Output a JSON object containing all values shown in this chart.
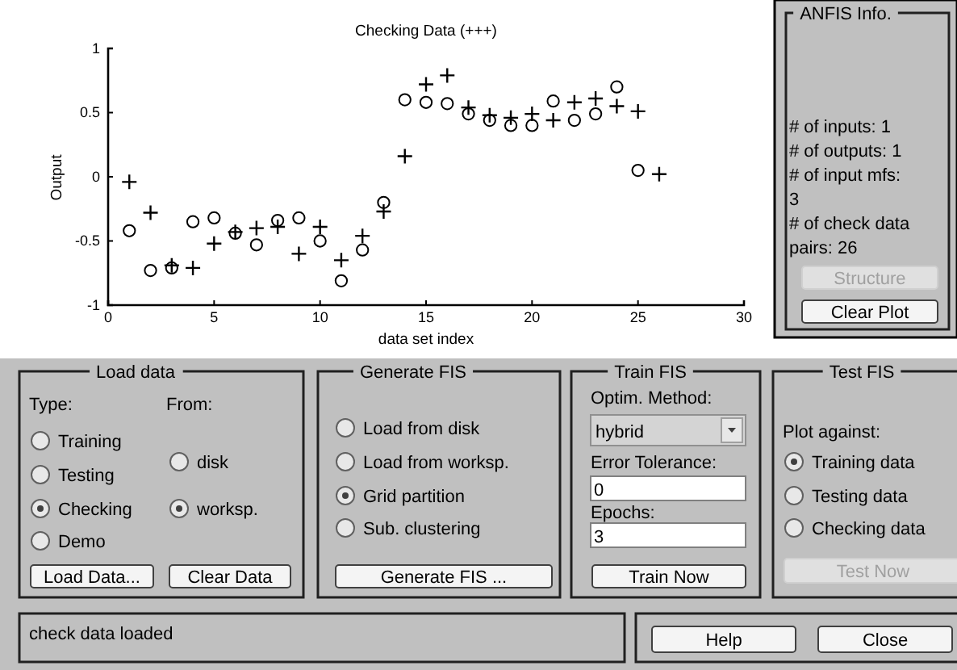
{
  "chart_data": [
    {
      "type": "scatter",
      "title": "Checking Data (+++)",
      "xlabel": "data set index",
      "ylabel": "Output",
      "x": [
        1,
        2,
        3,
        4,
        5,
        6,
        7,
        8,
        9,
        10,
        11,
        12,
        13,
        14,
        15,
        16,
        17,
        18,
        19,
        20,
        21,
        22,
        23,
        24,
        25,
        26
      ],
      "xlim": [
        0,
        30
      ],
      "xticks": [
        0,
        5,
        10,
        15,
        20,
        25,
        30
      ],
      "ylim": [
        -1,
        1
      ],
      "yticks": [
        -1,
        -0.5,
        0,
        0.5,
        1
      ],
      "series": [
        {
          "color": "#000000",
          "marker": "circle",
          "values": [
            -0.42,
            -0.73,
            -0.71,
            -0.35,
            -0.32,
            -0.44,
            -0.53,
            -0.34,
            -0.32,
            -0.5,
            -0.81,
            -0.57,
            -0.2,
            0.6,
            0.58,
            0.57,
            0.49,
            0.44,
            0.4,
            0.4,
            0.59,
            0.44,
            0.49,
            0.7,
            0.05,
            null
          ]
        },
        {
          "color": "#000000",
          "marker": "cross",
          "values": [
            -0.04,
            -0.28,
            -0.69,
            -0.71,
            -0.52,
            -0.43,
            -0.4,
            -0.39,
            -0.6,
            -0.39,
            -0.65,
            -0.46,
            -0.27,
            0.16,
            0.72,
            0.79,
            0.54,
            0.48,
            0.46,
            0.49,
            0.44,
            0.58,
            0.61,
            0.55,
            0.51,
            0.02
          ]
        }
      ]
    },
    {
      "type": "other",
      "title": "ANFIS Info.",
      "annotations": [
        "# of inputs: 1",
        "# of outputs: 1",
        "# of input mfs:",
        "3",
        "# of check data",
        "pairs: 26",
        "Structure",
        "Clear Plot"
      ]
    },
    {
      "type": "other",
      "title": "Load data",
      "annotations": [
        "Type:",
        "From:",
        "Training",
        "Testing",
        "Checking",
        "Demo",
        "disk",
        "worksp.",
        "Load Data...",
        "Clear Data"
      ]
    },
    {
      "type": "other",
      "title": "Generate FIS",
      "annotations": [
        "Load from disk",
        "Load from worksp.",
        "Grid partition",
        "Sub. clustering",
        "Generate FIS ..."
      ]
    },
    {
      "type": "other",
      "title": "Train FIS",
      "annotations": [
        "Optim. Method:",
        "hybrid",
        "Error Tolerance:",
        "0",
        "Epochs:",
        "3",
        "Train Now"
      ]
    },
    {
      "type": "other",
      "title": "Test FIS",
      "annotations": [
        "Plot against:",
        "Training data",
        "Testing data",
        "Checking data",
        "Test Now"
      ]
    },
    {
      "type": "other",
      "annotations": [
        "check data loaded"
      ]
    },
    {
      "type": "other",
      "annotations": [
        "Help",
        "Close"
      ]
    }
  ]
}
